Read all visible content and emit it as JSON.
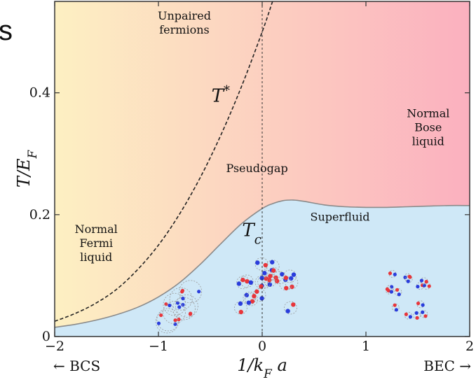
{
  "top_left_fragment": "s",
  "chart_data": {
    "type": "area",
    "xlabel": "1/k_F a",
    "ylabel": "T/E_F",
    "xlim": [
      -2,
      2
    ],
    "ylim": [
      0,
      0.55
    ],
    "x_ticks": [
      -2,
      -1,
      0,
      1,
      2
    ],
    "x_tick_labels": [
      "−2",
      "−1",
      "0",
      "1",
      "2"
    ],
    "y_ticks": [
      0,
      0.2,
      0.4
    ],
    "y_tick_labels": [
      "0",
      "0.2",
      "0.4"
    ],
    "grid": false,
    "x_side_labels": {
      "left": "← BCS",
      "right": "BEC →"
    },
    "series": [
      {
        "name": "T_c",
        "style": "solid",
        "color": "#8a8a8a",
        "x": [
          -2.0,
          -1.8,
          -1.6,
          -1.4,
          -1.2,
          -1.0,
          -0.8,
          -0.6,
          -0.4,
          -0.2,
          0.0,
          0.1,
          0.2,
          0.3,
          0.4,
          0.6,
          0.8,
          1.0,
          1.2,
          1.4,
          1.6,
          1.8,
          2.0
        ],
        "y": [
          0.015,
          0.02,
          0.027,
          0.036,
          0.048,
          0.065,
          0.088,
          0.118,
          0.152,
          0.185,
          0.21,
          0.218,
          0.223,
          0.224,
          0.222,
          0.216,
          0.213,
          0.212,
          0.212,
          0.213,
          0.214,
          0.215,
          0.215
        ]
      },
      {
        "name": "T*",
        "style": "dashed",
        "color": "#222222",
        "x": [
          -2.0,
          -1.8,
          -1.6,
          -1.4,
          -1.2,
          -1.0,
          -0.8,
          -0.6,
          -0.4,
          -0.2,
          0.0,
          0.1,
          0.2
        ],
        "y": [
          0.025,
          0.038,
          0.055,
          0.078,
          0.11,
          0.15,
          0.2,
          0.26,
          0.33,
          0.41,
          0.5,
          0.55,
          0.6
        ]
      }
    ],
    "vertical_line": {
      "x": 0,
      "style": "dotted"
    },
    "curve_labels": [
      {
        "text": "T*",
        "x": -0.4,
        "y": 0.385
      },
      {
        "text": "T_c",
        "x": -0.1,
        "y": 0.165
      }
    ],
    "regions": [
      {
        "label": [
          "Unpaired",
          "fermions"
        ],
        "x": -0.75,
        "y": 0.52
      },
      {
        "label": [
          "Pseudogap"
        ],
        "x": -0.05,
        "y": 0.27
      },
      {
        "label": [
          "Normal",
          "Bose",
          "liquid"
        ],
        "x": 1.6,
        "y": 0.36
      },
      {
        "label": [
          "Superfluid"
        ],
        "x": 0.75,
        "y": 0.19
      },
      {
        "label": [
          "Normal",
          "Fermi",
          "liquid"
        ],
        "x": -1.6,
        "y": 0.17
      }
    ],
    "colors": {
      "normal_left": "#fdf0c2",
      "normal_right": "#fbb0bf",
      "superfluid": "#cfe8f7",
      "particle_red": "#e8353a",
      "particle_blue": "#2a3ddc"
    }
  }
}
